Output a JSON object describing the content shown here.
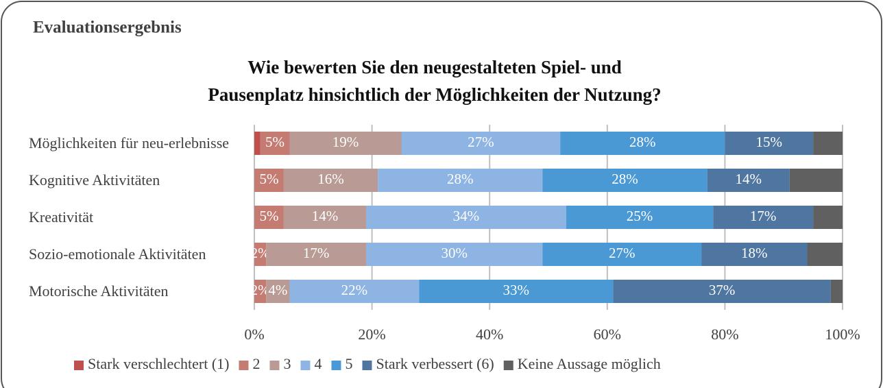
{
  "header": {
    "title": "Evaluationsergebnis"
  },
  "chart_data": {
    "type": "stacked_bar_horizontal",
    "title": [
      "Wie bewerten Sie den neugestalteten Spiel- und",
      "Pausenplatz hinsichtlich der Möglichkeiten der Nutzung?"
    ],
    "categories": [
      "Möglichkeiten für neu-erlebnisse",
      "Kognitive Aktivitäten",
      "Kreativität",
      "Sozio-emotionale Aktivitäten",
      "Motorische Aktivitäten"
    ],
    "series": [
      {
        "name": "Stark verschlechtert (1)",
        "color": "#c0504d",
        "values": [
          1,
          0,
          0,
          0,
          0
        ],
        "value_labels": [
          null,
          null,
          null,
          null,
          null
        ]
      },
      {
        "name": "2",
        "color": "#c47b72",
        "values": [
          5,
          5,
          5,
          2,
          2
        ],
        "value_labels": [
          "5%",
          "5%",
          "5%",
          "2%",
          "2%"
        ]
      },
      {
        "name": "3",
        "color": "#b99a94",
        "values": [
          19,
          16,
          14,
          17,
          4
        ],
        "value_labels": [
          "19%",
          "16%",
          "14%",
          "17%",
          "4%"
        ]
      },
      {
        "name": "4",
        "color": "#8db4e2",
        "values": [
          27,
          28,
          34,
          30,
          22
        ],
        "value_labels": [
          "27%",
          "28%",
          "34%",
          "30%",
          "22%"
        ]
      },
      {
        "name": "5",
        "color": "#4a98d4",
        "values": [
          28,
          28,
          25,
          27,
          33
        ],
        "value_labels": [
          "28%",
          "28%",
          "25%",
          "27%",
          "33%"
        ]
      },
      {
        "name": "Stark verbessert (6)",
        "color": "#4f76a0",
        "values": [
          15,
          14,
          17,
          18,
          37
        ],
        "value_labels": [
          "15%",
          "14%",
          "17%",
          "18%",
          "37%"
        ]
      },
      {
        "name": "Keine Aussage möglich",
        "color": "#606060",
        "values": [
          5,
          9,
          5,
          6,
          2
        ],
        "value_labels": [
          null,
          null,
          null,
          null,
          null
        ]
      }
    ],
    "xlim": [
      0,
      100
    ],
    "xticks": [
      {
        "value": 0,
        "label": "0%"
      },
      {
        "value": 20,
        "label": "20%"
      },
      {
        "value": 40,
        "label": "40%"
      },
      {
        "value": 60,
        "label": "60%"
      },
      {
        "value": 80,
        "label": "80%"
      },
      {
        "value": 100,
        "label": "100%"
      }
    ],
    "grid": true,
    "legend": "bottom"
  }
}
